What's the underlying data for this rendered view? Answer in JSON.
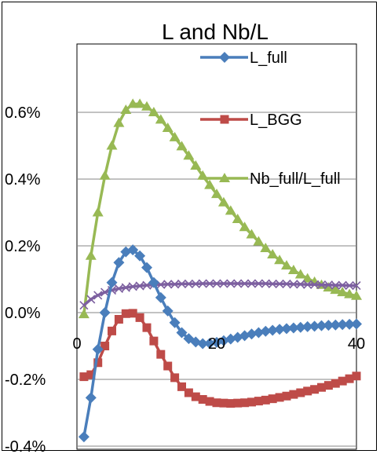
{
  "chart_data": {
    "type": "line",
    "title": "L and Nb/L",
    "xlabel": "",
    "ylabel": "",
    "xlim": [
      0,
      40
    ],
    "ylim": [
      -0.4,
      0.6
    ],
    "y_ticks": [
      "-0.4%",
      "-0.2%",
      "0.0%",
      "0.2%",
      "0.4%",
      "0.6%"
    ],
    "y_tick_values": [
      -0.4,
      -0.2,
      0.0,
      0.2,
      0.4,
      0.6
    ],
    "x_ticks": [
      "0",
      "20",
      "40"
    ],
    "x_tick_values": [
      0,
      20,
      40
    ],
    "grid": true,
    "legend": "top-right",
    "x": [
      1,
      2,
      3,
      4,
      5,
      6,
      7,
      8,
      9,
      10,
      11,
      12,
      13,
      14,
      15,
      16,
      17,
      18,
      19,
      20,
      21,
      22,
      23,
      24,
      25,
      26,
      27,
      28,
      29,
      30,
      31,
      32,
      33,
      34,
      35,
      36,
      37,
      38,
      39,
      40
    ],
    "series": [
      {
        "name": "L_full",
        "color": "#4a7ebb",
        "marker": "diamond",
        "values": [
          -0.372,
          -0.255,
          -0.11,
          0.0,
          0.09,
          0.15,
          0.182,
          0.188,
          0.17,
          0.135,
          0.09,
          0.045,
          0.005,
          -0.03,
          -0.06,
          -0.078,
          -0.088,
          -0.093,
          -0.092,
          -0.089,
          -0.084,
          -0.079,
          -0.074,
          -0.069,
          -0.064,
          -0.06,
          -0.056,
          -0.053,
          -0.05,
          -0.048,
          -0.046,
          -0.044,
          -0.042,
          -0.041,
          -0.039,
          -0.038,
          -0.037,
          -0.036,
          -0.035,
          -0.034
        ]
      },
      {
        "name": "L_BGG",
        "color": "#be4b48",
        "marker": "square",
        "values": [
          -0.192,
          -0.186,
          -0.15,
          -0.1,
          -0.055,
          -0.02,
          -0.003,
          -0.002,
          -0.015,
          -0.045,
          -0.085,
          -0.125,
          -0.16,
          -0.195,
          -0.222,
          -0.24,
          -0.252,
          -0.26,
          -0.266,
          -0.27,
          -0.271,
          -0.272,
          -0.271,
          -0.27,
          -0.268,
          -0.265,
          -0.262,
          -0.258,
          -0.254,
          -0.25,
          -0.245,
          -0.24,
          -0.235,
          -0.23,
          -0.224,
          -0.218,
          -0.212,
          -0.205,
          -0.198,
          -0.19
        ]
      },
      {
        "name": "Nb_full/L_full",
        "color": "#98b954",
        "marker": "triangle",
        "values": [
          -0.005,
          0.17,
          0.3,
          0.41,
          0.5,
          0.568,
          0.607,
          0.625,
          0.625,
          0.617,
          0.6,
          0.578,
          0.553,
          0.525,
          0.498,
          0.47,
          0.44,
          0.41,
          0.382,
          0.355,
          0.33,
          0.305,
          0.28,
          0.256,
          0.234,
          0.213,
          0.193,
          0.174,
          0.157,
          0.141,
          0.127,
          0.114,
          0.102,
          0.092,
          0.083,
          0.075,
          0.068,
          0.061,
          0.055,
          0.05
        ]
      },
      {
        "name": "",
        "color": "#7d60a0",
        "marker": "x",
        "values": [
          0.022,
          0.04,
          0.052,
          0.061,
          0.067,
          0.072,
          0.075,
          0.078,
          0.08,
          0.082,
          0.083,
          0.084,
          0.085,
          0.085,
          0.086,
          0.086,
          0.086,
          0.087,
          0.087,
          0.087,
          0.087,
          0.087,
          0.087,
          0.087,
          0.087,
          0.087,
          0.087,
          0.086,
          0.086,
          0.086,
          0.085,
          0.085,
          0.084,
          0.084,
          0.083,
          0.083,
          0.082,
          0.082,
          0.081,
          0.081
        ]
      }
    ]
  }
}
